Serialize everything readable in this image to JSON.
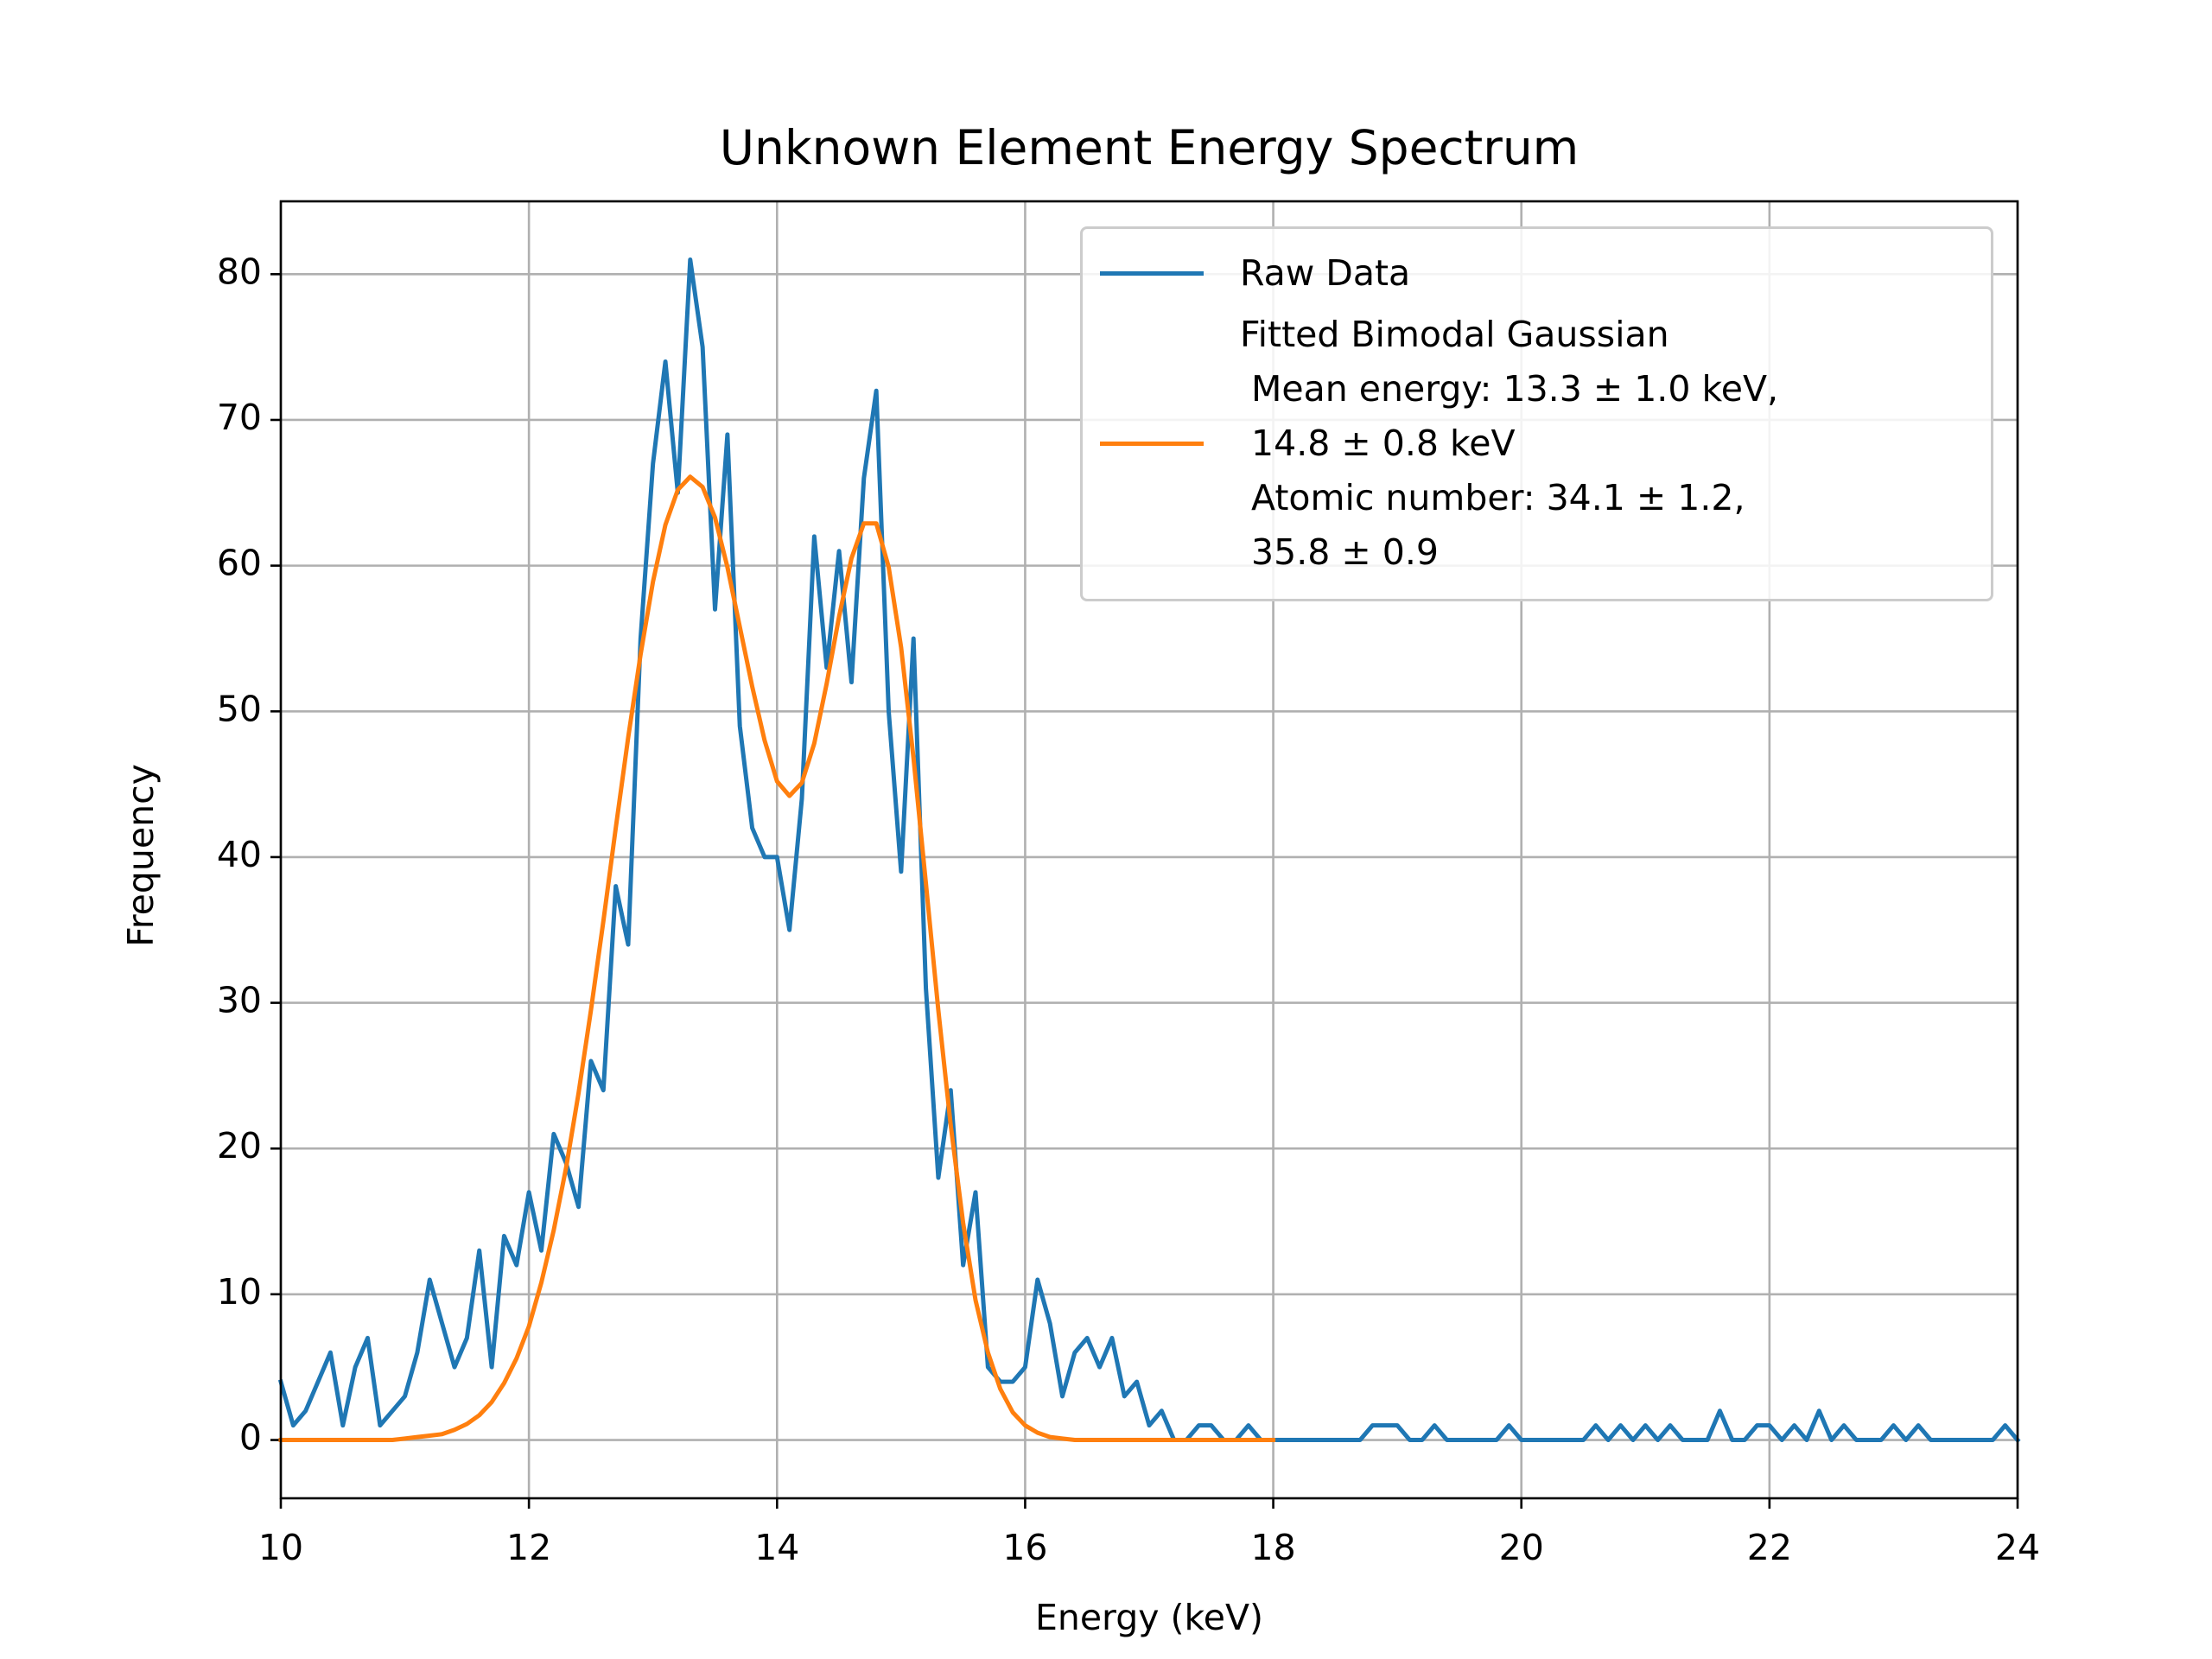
{
  "chart_data": {
    "type": "line",
    "title": "Unknown Element Energy Spectrum",
    "x_label": "Energy (keV)",
    "y_label": "Frequency",
    "xlim": [
      10,
      24
    ],
    "ylim": [
      -4,
      85
    ],
    "xticks": [
      10,
      12,
      14,
      16,
      18,
      20,
      22,
      24
    ],
    "yticks": [
      0,
      10,
      20,
      30,
      40,
      50,
      60,
      70,
      80
    ],
    "grid": true,
    "legend": "upper right",
    "series": [
      {
        "name": "Raw Data",
        "color": "#1f77b4",
        "x": [
          10.0,
          10.1,
          10.2,
          10.3,
          10.4,
          10.5,
          10.6,
          10.7,
          10.8,
          10.9,
          11.0,
          11.1,
          11.2,
          11.3,
          11.4,
          11.5,
          11.6,
          11.7,
          11.8,
          11.9,
          12.0,
          12.1,
          12.2,
          12.3,
          12.4,
          12.5,
          12.6,
          12.7,
          12.8,
          12.9,
          13.0,
          13.1,
          13.2,
          13.3,
          13.4,
          13.5,
          13.6,
          13.7,
          13.8,
          13.9,
          14.0,
          14.1,
          14.2,
          14.3,
          14.4,
          14.5,
          14.6,
          14.7,
          14.8,
          14.9,
          15.0,
          15.1,
          15.2,
          15.3,
          15.4,
          15.5,
          15.6,
          15.7,
          15.8,
          15.9,
          16.0,
          16.1,
          16.2,
          16.3,
          16.4,
          16.5,
          16.6,
          16.7,
          16.8,
          16.9,
          17.0,
          17.1,
          17.2,
          17.3,
          17.4,
          17.5,
          17.6,
          17.7,
          17.8,
          17.9,
          18.0,
          18.1,
          18.2,
          18.3,
          18.4,
          18.5,
          18.6,
          18.7,
          18.8,
          18.9,
          19.0,
          19.1,
          19.2,
          19.3,
          19.4,
          19.5,
          19.6,
          19.7,
          19.8,
          19.9,
          20.0,
          20.1,
          20.2,
          20.3,
          20.4,
          20.5,
          20.6,
          20.7,
          20.8,
          20.9,
          21.0,
          21.1,
          21.2,
          21.3,
          21.4,
          21.5,
          21.6,
          21.7,
          21.8,
          21.9,
          22.0,
          22.1,
          22.2,
          22.3,
          22.4,
          22.5,
          22.6,
          22.7,
          22.8,
          22.9,
          23.0,
          23.1,
          23.2,
          23.3,
          23.4,
          23.5,
          23.6,
          23.7,
          23.8,
          23.9,
          24.0
        ],
        "values": [
          4,
          1,
          2,
          4,
          6,
          1,
          5,
          7,
          1,
          2,
          3,
          6,
          11,
          8,
          5,
          7,
          13,
          5,
          14,
          12,
          17,
          13,
          21,
          19,
          16,
          26,
          24,
          38,
          34,
          55,
          67,
          74,
          65,
          81,
          75,
          57,
          69,
          49,
          42,
          40,
          40,
          35,
          44,
          62,
          53,
          61,
          52,
          66,
          72,
          50,
          39,
          55,
          31,
          18,
          24,
          12,
          17,
          5,
          4,
          4,
          5,
          11,
          8,
          3,
          6,
          7,
          5,
          7,
          3,
          4,
          1,
          2,
          0,
          0,
          1,
          1,
          0,
          0,
          1,
          0,
          0,
          0,
          0,
          0,
          0,
          0,
          0,
          0,
          1,
          1,
          1,
          0,
          0,
          1,
          0,
          0,
          0,
          0,
          0,
          1,
          0,
          0,
          0,
          0,
          0,
          0,
          1,
          0,
          1,
          0,
          1,
          0,
          1,
          0,
          0,
          0,
          2,
          0,
          0,
          1,
          1,
          0,
          1,
          0,
          2,
          0,
          1,
          0,
          0,
          0,
          1,
          0,
          1,
          0,
          0,
          0,
          0,
          0,
          0,
          1,
          0
        ]
      },
      {
        "name": "Fitted Bimodal Gaussian\n Mean energy: 13.3 ± 1.0 keV,\n 14.8 ± 0.8 keV\n Atomic number: 34.1 ± 1.2,\n 35.8 ± 0.9",
        "color": "#ff7f0e",
        "x": [
          10.0,
          10.1,
          10.2,
          10.3,
          10.4,
          10.5,
          10.6,
          10.7,
          10.8,
          10.9,
          11.0,
          11.1,
          11.2,
          11.3,
          11.4,
          11.5,
          11.6,
          11.7,
          11.8,
          11.9,
          12.0,
          12.1,
          12.2,
          12.3,
          12.4,
          12.5,
          12.6,
          12.7,
          12.8,
          12.9,
          13.0,
          13.1,
          13.2,
          13.3,
          13.4,
          13.5,
          13.6,
          13.7,
          13.8,
          13.9,
          14.0,
          14.1,
          14.2,
          14.3,
          14.4,
          14.5,
          14.6,
          14.7,
          14.8,
          14.9,
          15.0,
          15.1,
          15.2,
          15.3,
          15.4,
          15.5,
          15.6,
          15.7,
          15.8,
          15.9,
          16.0,
          16.1,
          16.2,
          16.3,
          16.4,
          16.5,
          16.6,
          16.7,
          16.8,
          16.9,
          17.0,
          17.1,
          17.2,
          17.3,
          17.4,
          17.5,
          17.6,
          17.7,
          17.8,
          17.9,
          18.0
        ],
        "values": [
          0,
          0,
          0,
          0,
          0,
          0,
          0,
          0,
          0,
          0,
          0.1,
          0.2,
          0.3,
          0.4,
          0.7,
          1.1,
          1.7,
          2.6,
          3.9,
          5.6,
          7.8,
          10.8,
          14.4,
          18.7,
          23.8,
          29.5,
          35.6,
          42.0,
          48.2,
          53.9,
          58.9,
          62.8,
          65.2,
          66.1,
          65.4,
          63.3,
          59.9,
          55.8,
          51.7,
          48.0,
          45.2,
          44.2,
          45.1,
          47.8,
          51.9,
          56.5,
          60.5,
          62.9,
          62.9,
          59.9,
          54.4,
          46.8,
          38.2,
          29.5,
          21.6,
          14.9,
          9.6,
          6.0,
          3.5,
          1.9,
          1.0,
          0.5,
          0.2,
          0.1,
          0,
          0,
          0,
          0,
          0,
          0,
          0,
          0,
          0,
          0,
          0,
          0,
          0,
          0,
          0,
          0,
          0
        ]
      }
    ]
  }
}
